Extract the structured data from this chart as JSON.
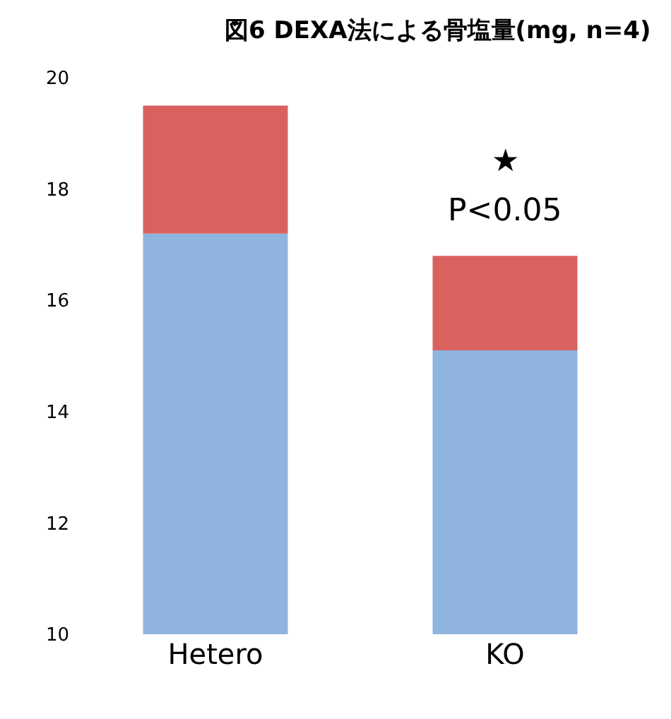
{
  "chart_data": {
    "type": "bar",
    "title": "図6 DEXA法による骨塩量(mg, n=4)",
    "categories": [
      "Hetero",
      "KO"
    ],
    "series": [
      {
        "color": "#8fb4e0",
        "base": [
          10,
          10
        ],
        "values": [
          7.2,
          5.1
        ]
      },
      {
        "color": "#d9625f",
        "base": [
          17.2,
          15.1
        ],
        "values": [
          2.3,
          1.7
        ]
      }
    ],
    "ylim": [
      10,
      20
    ],
    "yticks": [
      10,
      12,
      14,
      16,
      18,
      20
    ],
    "annotations": [
      "★",
      "P<0.05"
    ]
  }
}
